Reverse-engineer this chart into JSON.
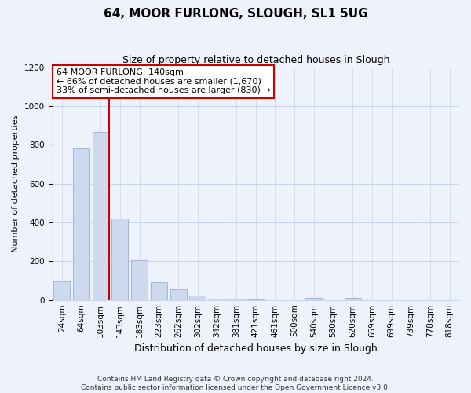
{
  "title": "64, MOOR FURLONG, SLOUGH, SL1 5UG",
  "subtitle": "Size of property relative to detached houses in Slough",
  "xlabel": "Distribution of detached houses by size in Slough",
  "ylabel": "Number of detached properties",
  "bar_labels": [
    "24sqm",
    "64sqm",
    "103sqm",
    "143sqm",
    "183sqm",
    "223sqm",
    "262sqm",
    "302sqm",
    "342sqm",
    "381sqm",
    "421sqm",
    "461sqm",
    "500sqm",
    "540sqm",
    "580sqm",
    "620sqm",
    "659sqm",
    "699sqm",
    "739sqm",
    "778sqm",
    "818sqm"
  ],
  "bar_values": [
    95,
    785,
    865,
    420,
    205,
    90,
    55,
    22,
    8,
    5,
    2,
    0,
    0,
    12,
    0,
    12,
    0,
    0,
    0,
    0,
    0
  ],
  "bar_color": "#ccd9ee",
  "bar_edge_color": "#a0b8d8",
  "vline_color": "#cc0000",
  "ylim": [
    0,
    1200
  ],
  "yticks": [
    0,
    200,
    400,
    600,
    800,
    1000,
    1200
  ],
  "annotation_line1": "64 MOOR FURLONG: 140sqm",
  "annotation_line2": "← 66% of detached houses are smaller (1,670)",
  "annotation_line3": "33% of semi-detached houses are larger (830) →",
  "annotation_box_color": "#ffffff",
  "annotation_box_edge": "#cc0000",
  "footer_line1": "Contains HM Land Registry data © Crown copyright and database right 2024.",
  "footer_line2": "Contains public sector information licensed under the Open Government Licence v3.0.",
  "background_color": "#eef2fa",
  "plot_bg_color": "#eef2fa",
  "grid_color": "#c8d4e8",
  "title_fontsize": 11,
  "subtitle_fontsize": 9,
  "xlabel_fontsize": 9,
  "ylabel_fontsize": 8,
  "tick_fontsize": 7.5,
  "ann_fontsize": 8,
  "footer_fontsize": 6.5
}
